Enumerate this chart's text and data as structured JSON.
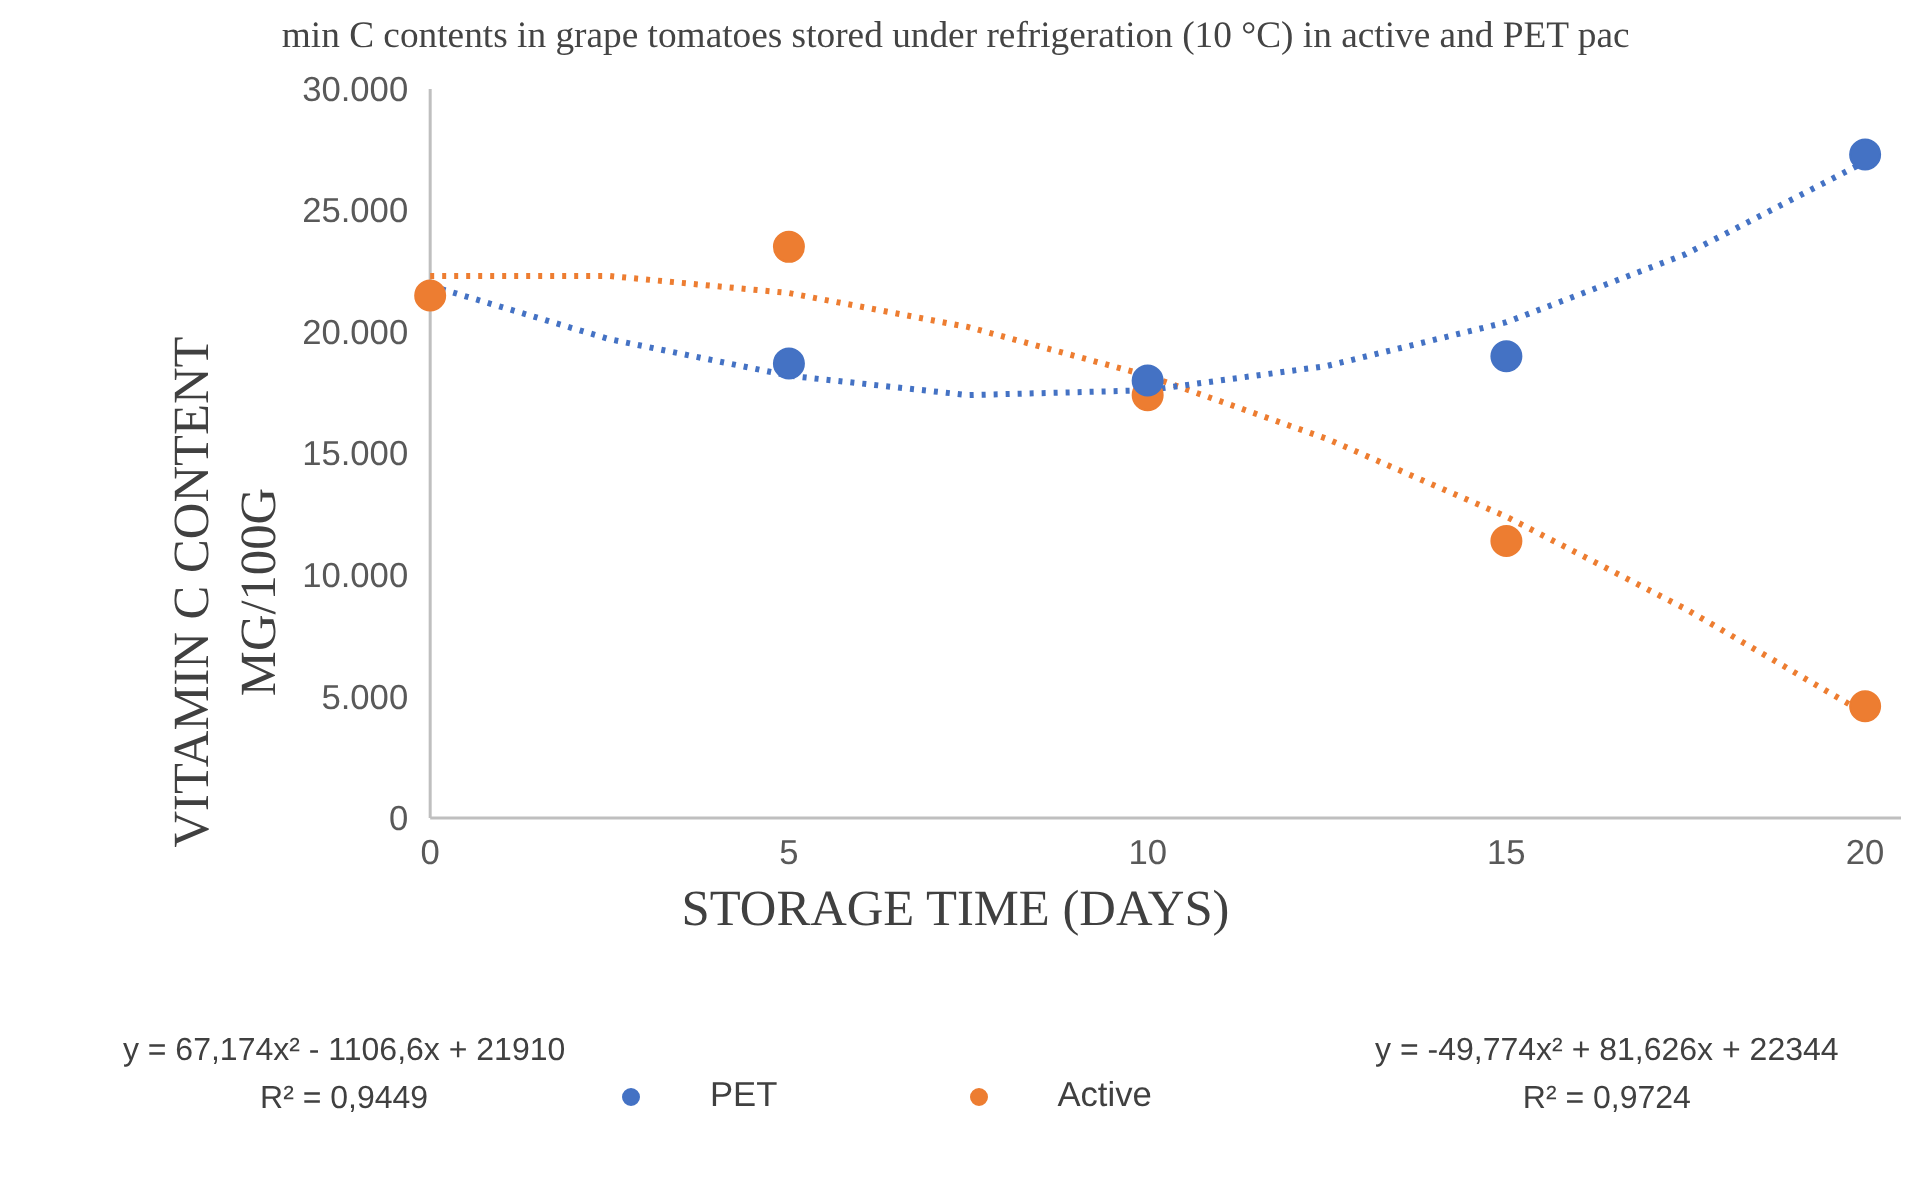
{
  "chart_data": {
    "type": "scatter",
    "title": "min C contents in grape tomatoes stored under refrigeration (10 °C) in active and PET pac",
    "xlabel": "STORAGE TIME (DAYS)",
    "ylabel": "VITAMIN C CONTENT\nMG/100G",
    "x": [
      0,
      5,
      10,
      15,
      20
    ],
    "series": [
      {
        "name": "PET",
        "color": "#4472c4",
        "values": [
          null,
          18700,
          18000,
          19000,
          27300
        ]
      },
      {
        "name": "Active",
        "color": "#ed7d31",
        "values": [
          21500,
          23500,
          17400,
          11400,
          4600
        ]
      },
      {
        "type": "line",
        "line_style": "dotted",
        "marker": "none",
        "color": "#4472c4",
        "x": [
          0,
          2.5,
          5,
          7.5,
          10,
          12.5,
          15,
          17.5,
          20
        ],
        "values": [
          21900,
          19700,
          18200,
          17400,
          17600,
          18600,
          20400,
          23200,
          27000
        ]
      },
      {
        "type": "line",
        "line_style": "dotted",
        "marker": "none",
        "color": "#ed7d31",
        "x": [
          0,
          2.5,
          5,
          7.5,
          10,
          12.5,
          15,
          17.5,
          20
        ],
        "values": [
          22300,
          22300,
          21600,
          20200,
          18200,
          15600,
          12400,
          8600,
          4300
        ]
      }
    ],
    "xlim": [
      0,
      20.5
    ],
    "xticks": [
      0,
      5,
      10,
      15,
      20
    ],
    "ylim": [
      0,
      30000
    ],
    "yticks": [
      0,
      {
        "value": 5000,
        "label": "5.000"
      },
      {
        "value": 10000,
        "label": "10.000"
      },
      {
        "value": 15000,
        "label": "15.000"
      },
      {
        "value": 20000,
        "label": "20.000"
      },
      {
        "value": 25000,
        "label": "25.000"
      },
      {
        "value": 30000,
        "label": "30.000"
      }
    ],
    "grid": false,
    "legend": "bottom",
    "marker": "circle",
    "annotations": [
      "y = 67,174x² - 1106,6x + 21910",
      "R² = 0,9449",
      "y = -49,774x² + 81,626x + 22344",
      "R² = 0,9724"
    ]
  }
}
